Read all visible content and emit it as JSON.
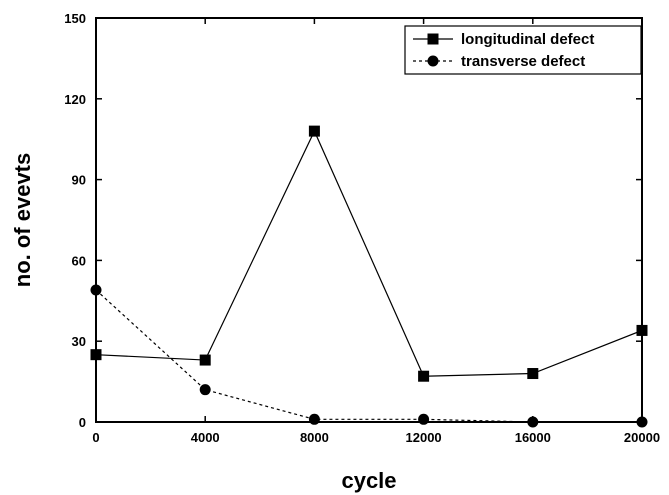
{
  "chart_data": {
    "type": "line",
    "xlabel": "cycle",
    "ylabel": "no. of evevts",
    "xlim": [
      0,
      20000
    ],
    "ylim": [
      0,
      150
    ],
    "xticks": [
      0,
      4000,
      8000,
      12000,
      16000,
      20000
    ],
    "yticks": [
      0,
      30,
      60,
      90,
      120,
      150
    ],
    "grid": false,
    "legend_position": "top-right",
    "series": [
      {
        "name": "longitudinal defect",
        "marker": "square",
        "line_style": "solid",
        "color": "#000000",
        "x": [
          0,
          4000,
          8000,
          12000,
          16000,
          20000
        ],
        "y": [
          25,
          23,
          108,
          17,
          18,
          34
        ]
      },
      {
        "name": "transverse defect",
        "marker": "circle",
        "line_style": "dotted",
        "color": "#000000",
        "x": [
          0,
          4000,
          8000,
          12000,
          16000,
          20000
        ],
        "y": [
          49,
          12,
          1,
          1,
          0,
          0
        ]
      }
    ]
  }
}
